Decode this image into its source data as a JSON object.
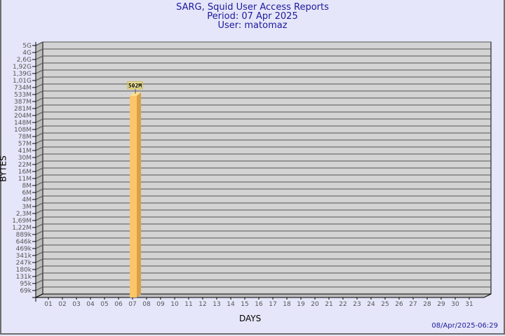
{
  "header": {
    "title": "SARG, Squid User Access Reports",
    "period": "Period: 07 Apr 2025",
    "user": "User: matomaz"
  },
  "footer": {
    "timestamp": "08/Apr/2025-06:29"
  },
  "chart_data": {
    "type": "bar",
    "title": "SARG, Squid User Access Reports",
    "xlabel": "DAYS",
    "ylabel": "BYTES",
    "y_scale": "log",
    "grid": true,
    "y_ticks": [
      "5G",
      "4G",
      "2,6G",
      "1,92G",
      "1,39G",
      "1,01G",
      "734M",
      "533M",
      "387M",
      "281M",
      "204M",
      "148M",
      "108M",
      "78M",
      "57M",
      "41M",
      "30M",
      "22M",
      "16M",
      "11M",
      "8M",
      "6M",
      "4M",
      "3M",
      "2,3M",
      "1,69M",
      "1,22M",
      "889k",
      "646k",
      "469k",
      "341k",
      "247k",
      "180k",
      "131k",
      "95k",
      "69k"
    ],
    "categories": [
      "01",
      "02",
      "03",
      "04",
      "05",
      "06",
      "07",
      "08",
      "09",
      "10",
      "11",
      "12",
      "13",
      "14",
      "15",
      "16",
      "17",
      "18",
      "19",
      "20",
      "21",
      "22",
      "23",
      "24",
      "25",
      "26",
      "27",
      "28",
      "29",
      "30",
      "31"
    ],
    "values": [
      null,
      null,
      null,
      null,
      null,
      null,
      "502M",
      null,
      null,
      null,
      null,
      null,
      null,
      null,
      null,
      null,
      null,
      null,
      null,
      null,
      null,
      null,
      null,
      null,
      null,
      null,
      null,
      null,
      null,
      null,
      null
    ],
    "colors": {
      "bar_front": "#fdc56a",
      "bar_side": "#d9a048",
      "bar_top": "#fde08c",
      "wall": "#d3d3d3",
      "label_bg": "#f2e6a0"
    }
  }
}
